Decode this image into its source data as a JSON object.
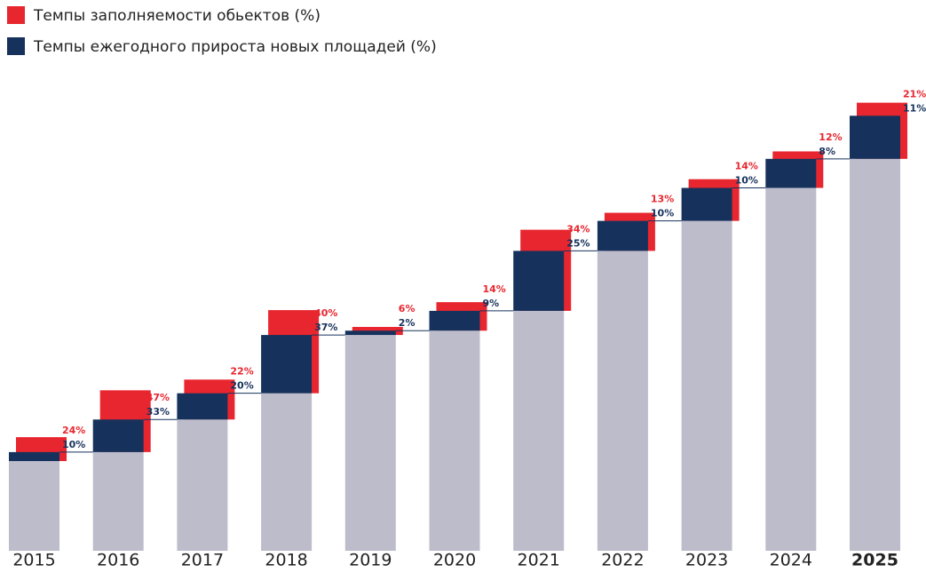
{
  "chart_data": {
    "type": "growth-bar",
    "categories": [
      "2015",
      "2016",
      "2017",
      "2018",
      "2019",
      "2020",
      "2021",
      "2022",
      "2023",
      "2024",
      "2025"
    ],
    "series": [
      {
        "name": "Темпы заполняемости обьектов (%)",
        "color": "#e8262f",
        "values": [
          24,
          47,
          22,
          40,
          6,
          14,
          34,
          13,
          14,
          12,
          21
        ],
        "value_labels": [
          "24%",
          "47%",
          "22%",
          "40%",
          "6%",
          "14%",
          "34%",
          "13%",
          "14%",
          "12%",
          "21%"
        ]
      },
      {
        "name": "Темпы ежегодного прироста новых площадей (%)",
        "color": "#16325c",
        "values": [
          10,
          33,
          20,
          37,
          2,
          9,
          25,
          10,
          10,
          8,
          11
        ],
        "value_labels": [
          "10%",
          "33%",
          "20%",
          "37%",
          "2%",
          "9%",
          "25%",
          "10%",
          "10%",
          "8%",
          "11%"
        ]
      }
    ],
    "base_color": "#bdbccb"
  }
}
